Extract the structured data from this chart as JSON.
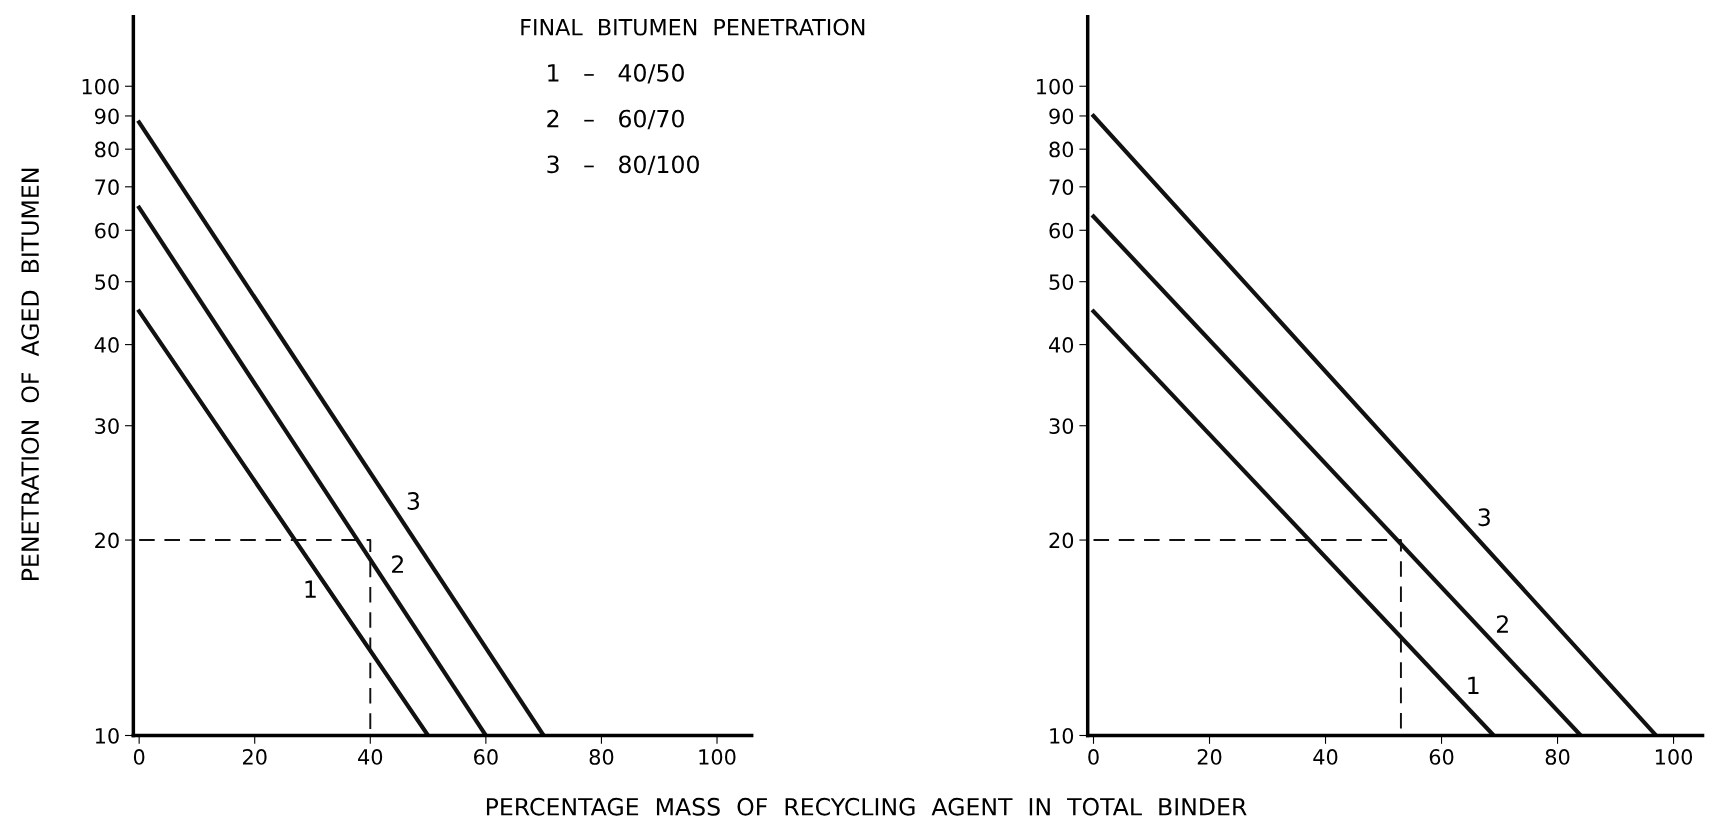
{
  "chart_data": [
    {
      "type": "line",
      "xlabel": "PERCENTAGE  MASS  OF  RECYCLING  AGENT  IN  TOTAL  BINDER",
      "ylabel": "PENETRATION  OF  AGED  BITUMEN",
      "log": "y",
      "grid": false,
      "legend": false,
      "marker": "none",
      "xlim": [
        -1,
        106
      ],
      "ylim": [
        10,
        128
      ],
      "xticks": [
        0,
        20,
        40,
        60,
        80,
        100
      ],
      "yticks": [
        10,
        20,
        30,
        40,
        50,
        60,
        70,
        80,
        90,
        100
      ],
      "series": [
        {
          "name": "1",
          "color": "#111111",
          "x": [
            0,
            50
          ],
          "values": [
            45,
            10
          ],
          "line_style": "solid"
        },
        {
          "name": "2",
          "color": "#111111",
          "x": [
            0,
            60
          ],
          "values": [
            65,
            10
          ],
          "line_style": "solid"
        },
        {
          "name": "3",
          "color": "#111111",
          "x": [
            0,
            70
          ],
          "values": [
            88,
            10
          ],
          "line_style": "solid"
        },
        {
          "color": "#111111",
          "x": [
            0,
            40,
            40
          ],
          "values": [
            20,
            20,
            10
          ],
          "line_style": "dashed"
        }
      ],
      "annotations": [
        "FINAL  BITUMEN  PENETRATION",
        "1   –   40/50",
        "2   –   60/70",
        "3   –   80/100"
      ]
    },
    {
      "type": "line",
      "log": "y",
      "grid": false,
      "legend": false,
      "marker": "none",
      "xlim": [
        -1,
        105
      ],
      "ylim": [
        10,
        128
      ],
      "xticks": [
        0,
        20,
        40,
        60,
        80,
        100
      ],
      "yticks": [
        10,
        20,
        30,
        40,
        50,
        60,
        70,
        80,
        90,
        100
      ],
      "series": [
        {
          "name": "1",
          "color": "#111111",
          "x": [
            0,
            69
          ],
          "values": [
            45,
            10
          ],
          "line_style": "solid"
        },
        {
          "name": "2",
          "color": "#111111",
          "x": [
            0,
            84
          ],
          "values": [
            63,
            10
          ],
          "line_style": "solid"
        },
        {
          "name": "3",
          "color": "#111111",
          "x": [
            0,
            97
          ],
          "values": [
            90,
            10
          ],
          "line_style": "solid"
        },
        {
          "color": "#111111",
          "x": [
            0,
            53,
            53
          ],
          "values": [
            20,
            20,
            10
          ],
          "line_style": "dashed"
        }
      ]
    }
  ]
}
